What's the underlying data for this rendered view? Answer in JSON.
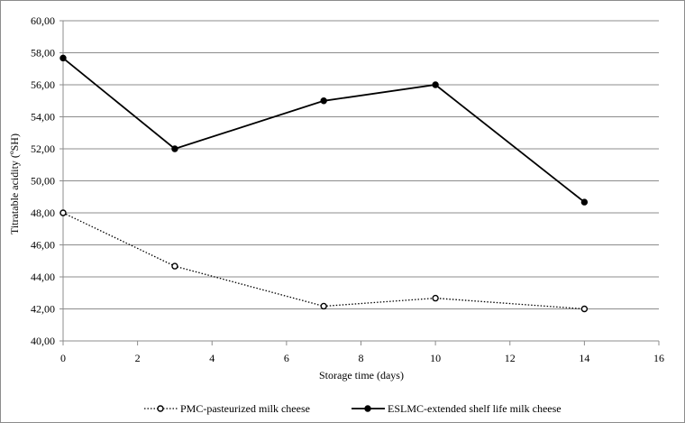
{
  "chart_data": {
    "type": "line",
    "xlabel": "Storage time (days)",
    "ylabel": "Titratable acidity (ºSH)",
    "xlim": [
      0,
      16
    ],
    "ylim": [
      40,
      60
    ],
    "x_ticks": [
      "0",
      "2",
      "4",
      "6",
      "8",
      "10",
      "12",
      "14",
      "16"
    ],
    "y_ticks": [
      "40,00",
      "42,00",
      "44,00",
      "46,00",
      "48,00",
      "50,00",
      "52,00",
      "54,00",
      "56,00",
      "58,00",
      "60,00"
    ],
    "grid": "horizontal",
    "legend_position": "bottom",
    "series": [
      {
        "name": "PMC-pasteurized milk cheese",
        "x": [
          0,
          3,
          7,
          10,
          14
        ],
        "y": [
          48.0,
          44.67,
          42.17,
          42.67,
          42.0
        ],
        "line_style": "dotted",
        "marker": "open-circle",
        "color": "#000000"
      },
      {
        "name": "ESLMC-extended shelf life milk cheese",
        "x": [
          0,
          3,
          7,
          10,
          14
        ],
        "y": [
          57.67,
          52.0,
          55.0,
          56.0,
          48.67
        ],
        "line_style": "solid",
        "marker": "filled-circle",
        "color": "#000000"
      }
    ]
  }
}
